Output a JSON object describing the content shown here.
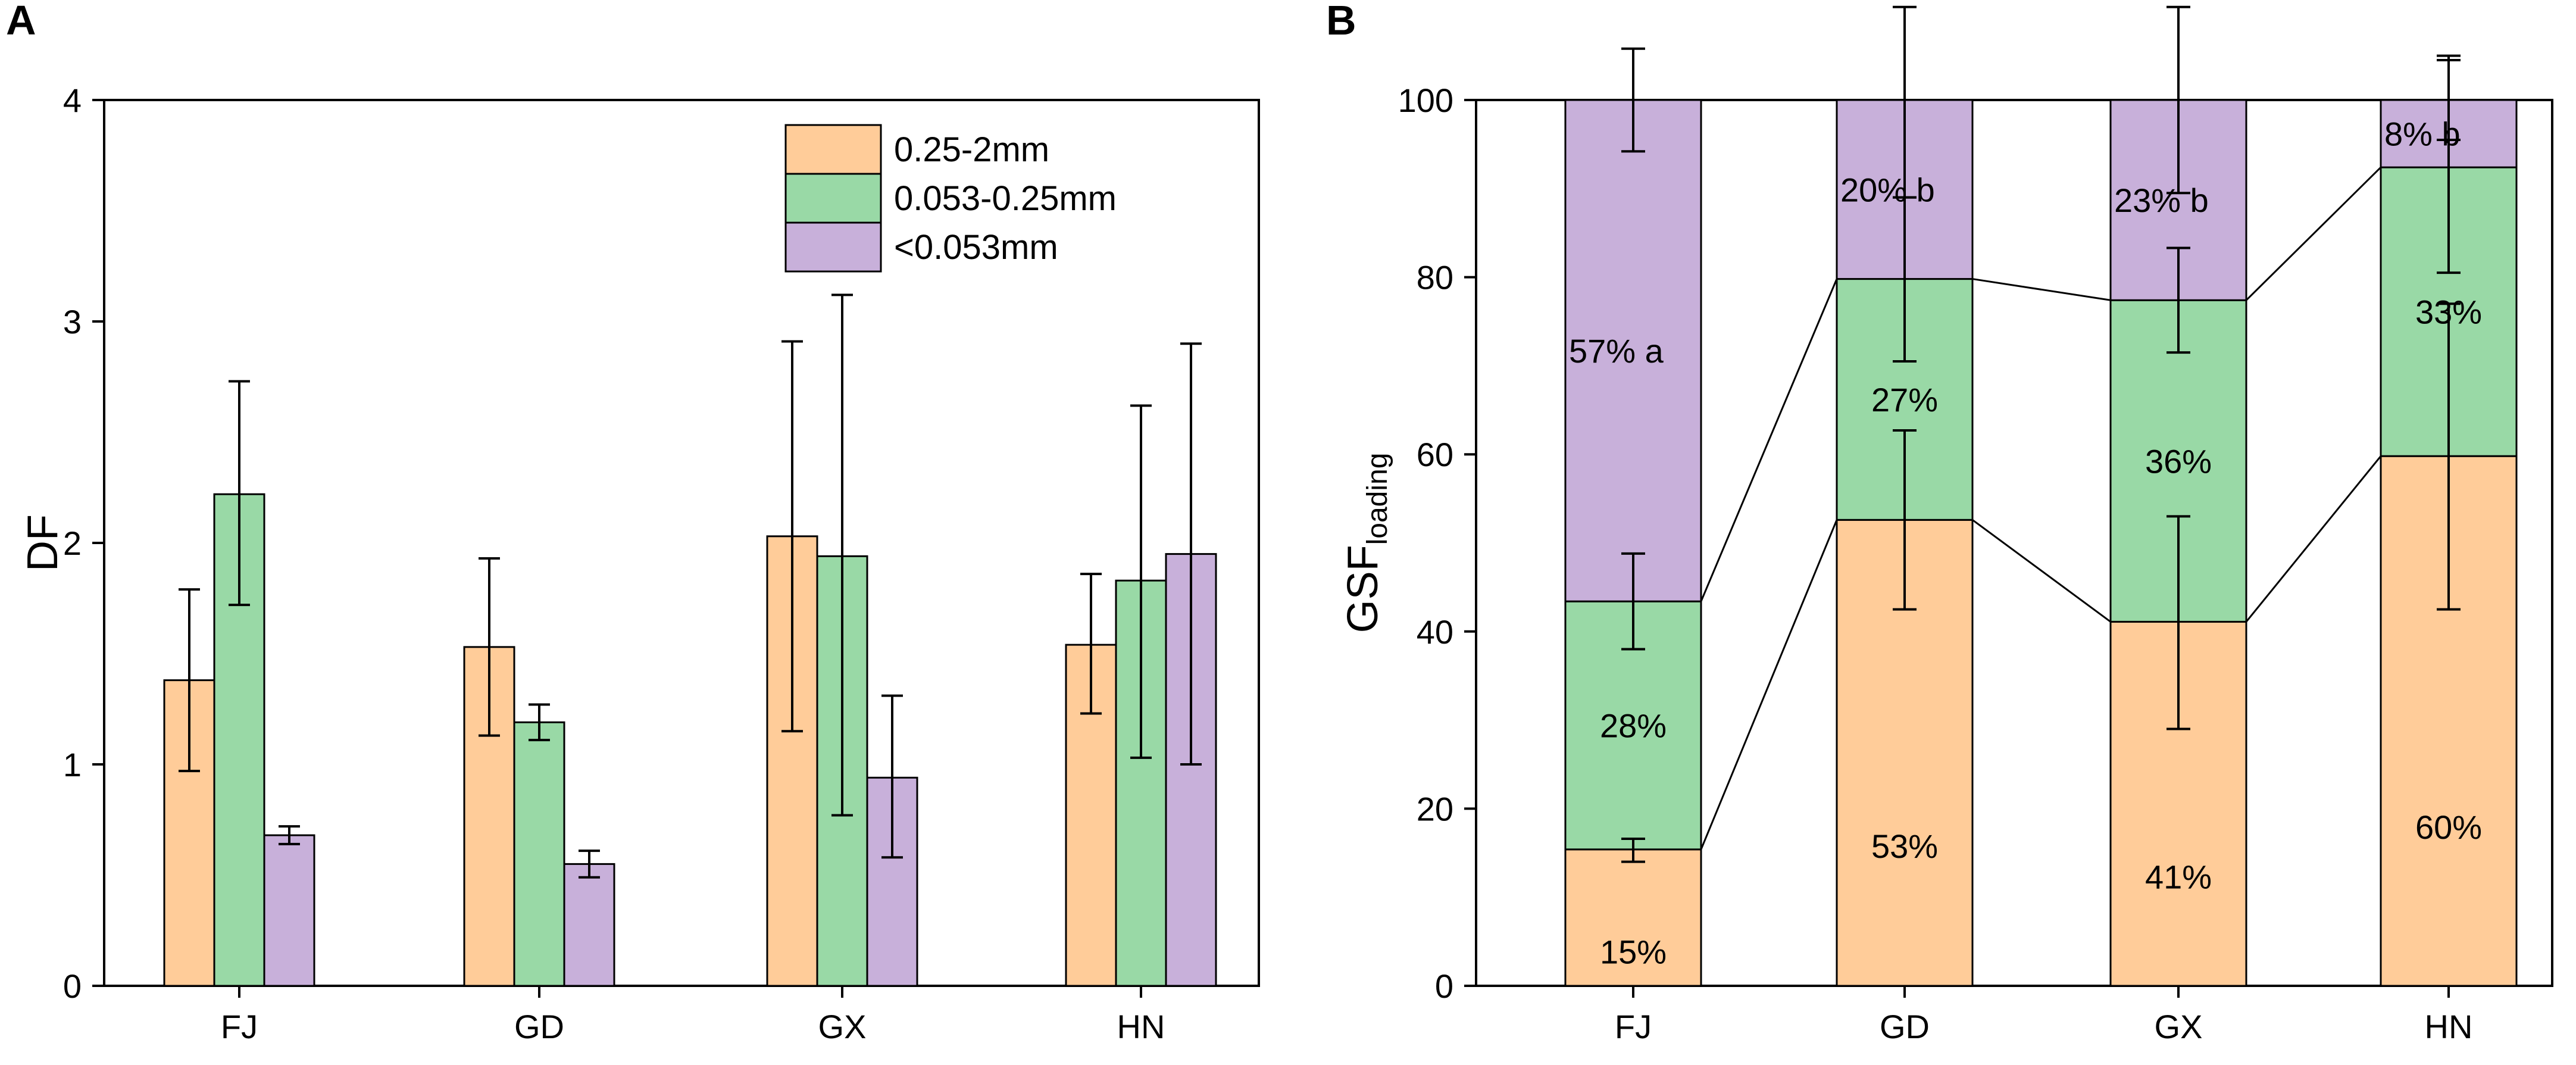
{
  "colors": {
    "orange": "#FFCC99",
    "green": "#99D9A6",
    "purple": "#C8B0DA"
  },
  "chart_data": [
    {
      "type": "bar",
      "panel_label": "A",
      "title": "",
      "xlabel": "",
      "ylabel": "DF",
      "ylim": [
        0,
        4
      ],
      "yticks": [
        "0",
        "1",
        "2",
        "3",
        "4"
      ],
      "categories": [
        "FJ",
        "GD",
        "GX",
        "HN"
      ],
      "legend_position": "top-right",
      "series": [
        {
          "name": "0.25-2mm",
          "color_key": "orange",
          "values": [
            1.38,
            1.53,
            2.03,
            1.54
          ],
          "err_low": [
            0.97,
            1.13,
            1.15,
            1.23
          ],
          "err_high": [
            1.79,
            1.93,
            2.91,
            1.86
          ]
        },
        {
          "name": "0.053-0.25mm",
          "color_key": "green",
          "values": [
            2.22,
            1.19,
            1.94,
            1.83
          ],
          "err_low": [
            1.72,
            1.11,
            0.77,
            1.03
          ],
          "err_high": [
            2.73,
            1.27,
            3.12,
            2.62
          ]
        },
        {
          "name": "<0.053mm",
          "color_key": "purple",
          "values": [
            0.68,
            0.55,
            0.94,
            1.95
          ],
          "err_low": [
            0.64,
            0.49,
            0.58,
            1.0
          ],
          "err_high": [
            0.72,
            0.61,
            1.31,
            2.9
          ]
        }
      ]
    },
    {
      "type": "bar",
      "stacked": true,
      "panel_label": "B",
      "title": "",
      "xlabel": "",
      "ylabel_main": "GSF",
      "ylabel_sub": "loading",
      "ylim": [
        0,
        100
      ],
      "yticks": [
        "0",
        "20",
        "40",
        "60",
        "80",
        "100"
      ],
      "categories": [
        "FJ",
        "GD",
        "GX",
        "HN"
      ],
      "series": [
        {
          "name": "0.25-2mm",
          "color_key": "orange",
          "values": [
            15.4,
            52.6,
            41.1,
            59.8
          ],
          "labels": [
            "15%",
            "53%",
            "41%",
            "60%"
          ],
          "err_low": [
            14.0,
            42.5,
            29.0,
            42.5
          ],
          "err_high": [
            16.6,
            62.7,
            53.0,
            77.0
          ]
        },
        {
          "name": "0.053-0.25mm",
          "color_key": "green",
          "values": [
            28.0,
            27.2,
            36.3,
            32.6
          ],
          "labels": [
            "28%",
            "27%",
            "36%",
            "33%"
          ],
          "err_low": [
            38.0,
            70.5,
            71.5,
            80.5
          ],
          "err_high": [
            48.8,
            89.0,
            83.3,
            104.5
          ]
        },
        {
          "name": "<0.053mm",
          "color_key": "purple",
          "values": [
            56.6,
            20.2,
            22.6,
            7.6
          ],
          "labels": [
            "57% a",
            "20% b",
            "23% b",
            "8% b"
          ],
          "err_low": [
            94.2,
            89.0,
            89.5,
            95.5
          ],
          "err_high": [
            105.8,
            110.5,
            110.5,
            105.0
          ]
        }
      ]
    }
  ]
}
